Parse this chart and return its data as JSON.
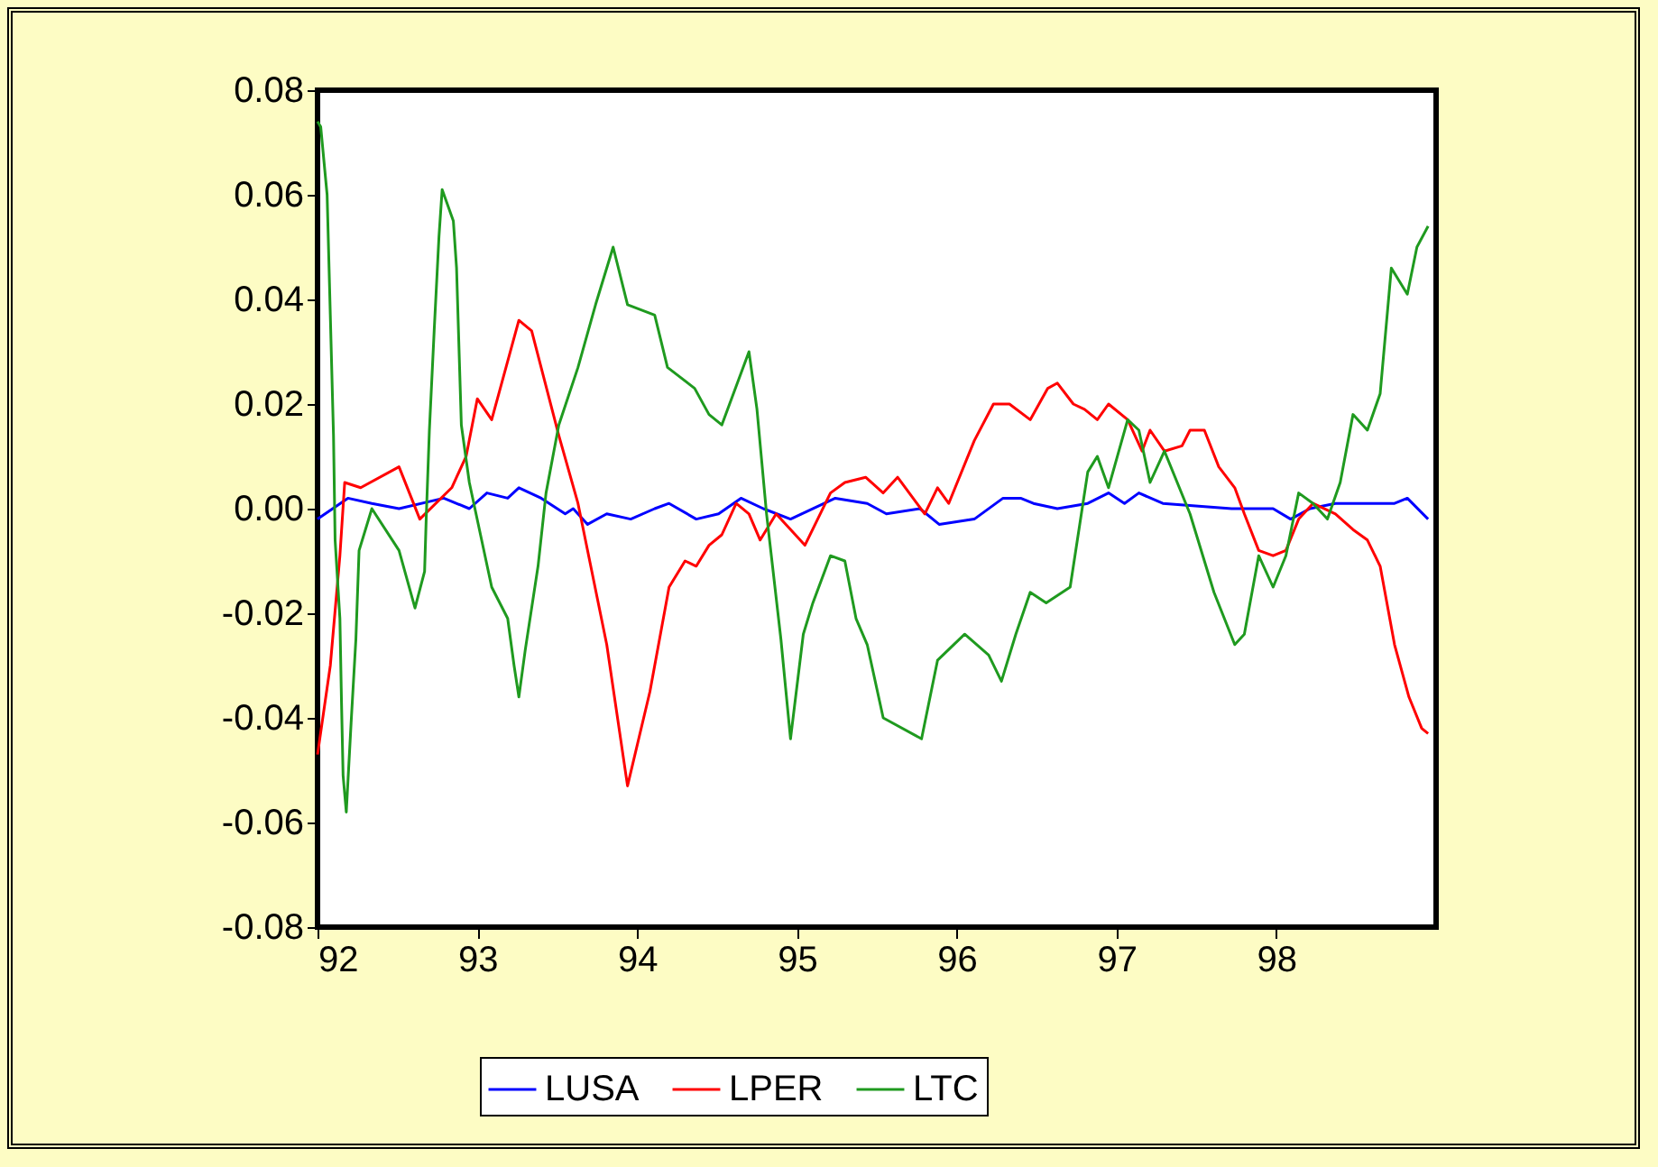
{
  "chart_data": {
    "type": "line",
    "xlim": [
      92,
      99
    ],
    "xticks": [
      92,
      93,
      94,
      95,
      96,
      97,
      98
    ],
    "ylim": [
      -0.08,
      0.08
    ],
    "yticks": [
      {
        "value": -0.08,
        "label": "-0.08"
      },
      {
        "value": -0.06,
        "label": "-0.06"
      },
      {
        "value": -0.04,
        "label": "-0.04"
      },
      {
        "value": -0.02,
        "label": "-0.02"
      },
      {
        "value": 0,
        "label": "0.00"
      },
      {
        "value": 0.02,
        "label": "0.02"
      },
      {
        "value": 0.04,
        "label": "0.04"
      },
      {
        "value": 0.06,
        "label": "0.06"
      },
      {
        "value": 0.08,
        "label": "0.08"
      }
    ],
    "grid": false,
    "legend": "bottom",
    "series": [
      {
        "name": "LUSA",
        "color": "#0000ff",
        "x": [
          92.0,
          92.19,
          92.34,
          92.51,
          92.79,
          92.95,
          93.06,
          93.19,
          93.26,
          93.4,
          93.55,
          93.6,
          93.69,
          93.81,
          93.96,
          94.11,
          94.2,
          94.37,
          94.51,
          94.65,
          94.79,
          94.96,
          95.24,
          95.44,
          95.56,
          95.77,
          95.89,
          96.11,
          96.29,
          96.4,
          96.48,
          96.63,
          96.82,
          96.95,
          97.05,
          97.14,
          97.29,
          97.72,
          97.98,
          98.09,
          98.21,
          98.37,
          98.74,
          98.82,
          98.95
        ],
        "values": [
          -0.002,
          0.002,
          0.001,
          0.0,
          0.002,
          0.0,
          0.003,
          0.002,
          0.004,
          0.002,
          -0.001,
          0.0,
          -0.003,
          -0.001,
          -0.002,
          0.0,
          0.001,
          -0.002,
          -0.001,
          0.002,
          0.0,
          -0.002,
          0.002,
          0.001,
          -0.001,
          0.0,
          -0.003,
          -0.002,
          0.002,
          0.002,
          0.001,
          0.0,
          0.001,
          0.003,
          0.001,
          0.003,
          0.001,
          0.0,
          0.0,
          -0.002,
          0.0,
          0.001,
          0.001,
          0.002,
          -0.002
        ]
      },
      {
        "name": "LPER",
        "color": "#ff0000",
        "x": [
          92.0,
          92.08,
          92.14,
          92.17,
          92.27,
          92.51,
          92.64,
          92.84,
          92.93,
          93.0,
          93.09,
          93.26,
          93.34,
          93.51,
          93.63,
          93.81,
          93.94,
          94.08,
          94.2,
          94.3,
          94.37,
          94.45,
          94.53,
          94.62,
          94.7,
          94.77,
          94.87,
          95.05,
          95.21,
          95.3,
          95.43,
          95.54,
          95.63,
          95.8,
          95.88,
          95.95,
          96.11,
          96.23,
          96.33,
          96.46,
          96.57,
          96.63,
          96.73,
          96.8,
          96.88,
          96.95,
          97.07,
          97.16,
          97.21,
          97.3,
          97.41,
          97.46,
          97.55,
          97.64,
          97.74,
          97.8,
          97.89,
          97.98,
          98.06,
          98.14,
          98.23,
          98.37,
          98.48,
          98.57,
          98.65,
          98.74,
          98.83,
          98.91,
          98.95
        ],
        "values": [
          -0.047,
          -0.03,
          -0.009,
          0.005,
          0.004,
          0.008,
          -0.002,
          0.004,
          0.01,
          0.021,
          0.017,
          0.036,
          0.034,
          0.014,
          0.001,
          -0.026,
          -0.053,
          -0.035,
          -0.015,
          -0.01,
          -0.011,
          -0.007,
          -0.005,
          0.001,
          -0.001,
          -0.006,
          -0.001,
          -0.007,
          0.003,
          0.005,
          0.006,
          0.003,
          0.006,
          -0.001,
          0.004,
          0.001,
          0.013,
          0.02,
          0.02,
          0.017,
          0.023,
          0.024,
          0.02,
          0.019,
          0.017,
          0.02,
          0.017,
          0.011,
          0.015,
          0.011,
          0.012,
          0.015,
          0.015,
          0.008,
          0.004,
          -0.001,
          -0.008,
          -0.009,
          -0.008,
          -0.002,
          0.001,
          -0.001,
          -0.004,
          -0.006,
          -0.011,
          -0.026,
          -0.036,
          -0.042,
          -0.043
        ]
      },
      {
        "name": "LTC",
        "color": "#1f9a1f",
        "x": [
          92.0,
          92.02,
          92.06,
          92.08,
          92.1,
          92.11,
          92.14,
          92.15,
          92.16,
          92.18,
          92.21,
          92.24,
          92.26,
          92.34,
          92.51,
          92.61,
          92.67,
          92.68,
          92.7,
          92.73,
          92.76,
          92.78,
          92.85,
          92.87,
          92.9,
          92.95,
          93.09,
          93.19,
          93.23,
          93.26,
          93.3,
          93.38,
          93.43,
          93.51,
          93.63,
          93.74,
          93.85,
          93.94,
          94.11,
          94.19,
          94.36,
          94.45,
          94.53,
          94.7,
          94.75,
          94.81,
          94.9,
          94.96,
          95.04,
          95.1,
          95.21,
          95.3,
          95.37,
          95.44,
          95.54,
          95.78,
          95.88,
          96.05,
          96.2,
          96.28,
          96.37,
          96.46,
          96.56,
          96.71,
          96.82,
          96.88,
          96.95,
          97.07,
          97.14,
          97.21,
          97.3,
          97.46,
          97.61,
          97.74,
          97.8,
          97.89,
          97.98,
          98.06,
          98.14,
          98.23,
          98.32,
          98.4,
          98.48,
          98.57,
          98.65,
          98.72,
          98.82,
          98.88,
          98.95
        ],
        "values": [
          0.074,
          0.073,
          0.06,
          0.037,
          0.014,
          -0.006,
          -0.021,
          -0.037,
          -0.051,
          -0.058,
          -0.041,
          -0.025,
          -0.008,
          0.0,
          -0.008,
          -0.019,
          -0.012,
          -0.002,
          0.015,
          0.034,
          0.052,
          0.061,
          0.055,
          0.046,
          0.016,
          0.005,
          -0.015,
          -0.021,
          -0.03,
          -0.036,
          -0.027,
          -0.011,
          0.003,
          0.016,
          0.027,
          0.039,
          0.05,
          0.039,
          0.037,
          0.027,
          0.023,
          0.018,
          0.016,
          0.03,
          0.019,
          -0.001,
          -0.025,
          -0.044,
          -0.024,
          -0.018,
          -0.009,
          -0.01,
          -0.021,
          -0.026,
          -0.04,
          -0.044,
          -0.029,
          -0.024,
          -0.028,
          -0.033,
          -0.024,
          -0.016,
          -0.018,
          -0.015,
          0.007,
          0.01,
          0.004,
          0.017,
          0.015,
          0.005,
          0.011,
          -0.001,
          -0.016,
          -0.026,
          -0.024,
          -0.009,
          -0.015,
          -0.009,
          0.003,
          0.001,
          -0.002,
          0.005,
          0.018,
          0.015,
          0.022,
          0.046,
          0.041,
          0.05,
          0.054
        ]
      }
    ]
  }
}
